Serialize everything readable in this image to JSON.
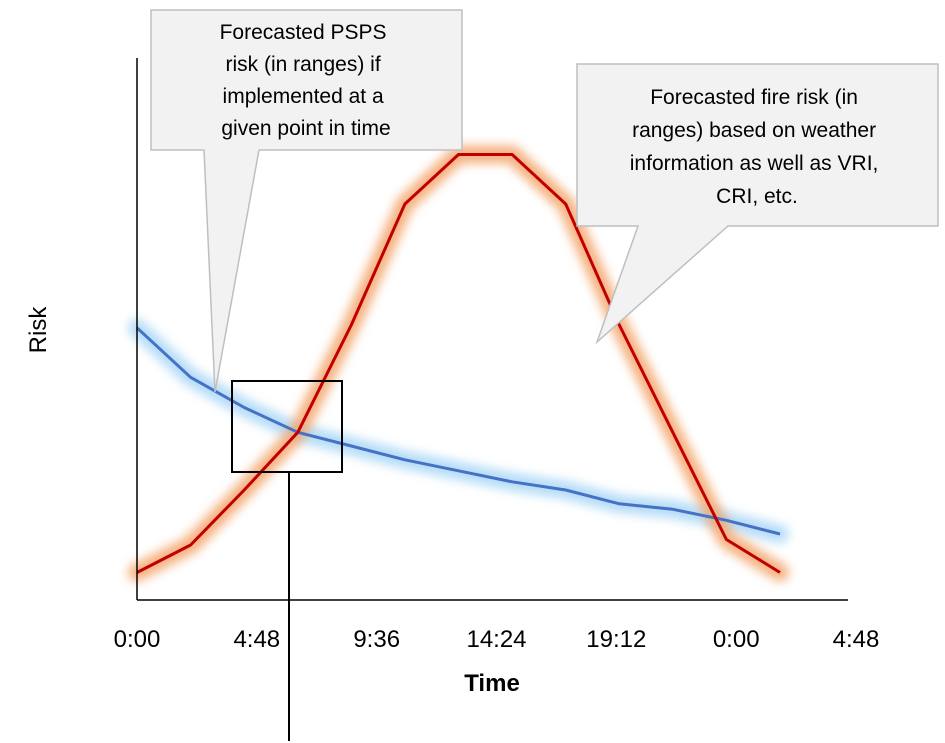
{
  "chart_data": {
    "type": "line",
    "title": "",
    "xlabel": "Time",
    "ylabel": "Risk",
    "x_tick_labels": [
      "0:00",
      "4:48",
      "9:36",
      "14:24",
      "19:12",
      "0:00",
      "4:48"
    ],
    "x_tick_hours": [
      0,
      4.8,
      9.6,
      14.4,
      19.2,
      24,
      28.8
    ],
    "xlim_hours": [
      0,
      28.8
    ],
    "ylim": [
      0,
      1
    ],
    "grid": false,
    "legend": "none",
    "series": [
      {
        "key": "pspsRisk",
        "color": "#4472c4",
        "glow": "#a9d6f7",
        "x": [
          0,
          2.4,
          4.8,
          7.2,
          9.6,
          12,
          14.4,
          16.8,
          19.2,
          21.6,
          24,
          26.4,
          28.8
        ],
        "y": [
          0.495,
          0.405,
          0.35,
          0.305,
          0.28,
          0.255,
          0.235,
          0.215,
          0.2,
          0.175,
          0.165,
          0.145,
          0.12
        ]
      },
      {
        "key": "fireRisk",
        "color": "#c00000",
        "glow": "#f4a46a",
        "x": [
          0,
          2.4,
          4.8,
          7.2,
          9.6,
          12,
          14.4,
          16.8,
          19.2,
          21.6,
          24,
          26.4,
          28.8
        ],
        "y": [
          0.05,
          0.1,
          0.2,
          0.305,
          0.5,
          0.72,
          0.81,
          0.81,
          0.72,
          0.5,
          0.305,
          0.11,
          0.05
        ]
      }
    ],
    "annotations": {
      "psps_callout": [
        "Forecasted PSPS",
        "risk (in ranges) if",
        "implemented at a",
        "given point in time"
      ],
      "fire_callout": [
        "Forecasted fire risk (in",
        "ranges) based on weather",
        "information as well as VRI,",
        "CRI, etc."
      ]
    }
  }
}
